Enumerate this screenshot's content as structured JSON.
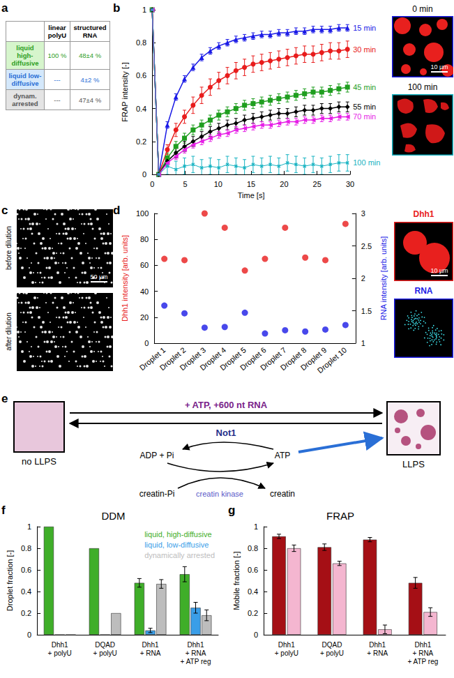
{
  "panel_labels": [
    "a",
    "b",
    "c",
    "d",
    "e",
    "f",
    "g"
  ],
  "table": {
    "header": [
      "",
      "linear polyU",
      "structured RNA"
    ],
    "rows": [
      {
        "label": "liquid high-diffusive",
        "cells": [
          "100 %",
          "48±4 %"
        ]
      },
      {
        "label": "liquid low-diffusive",
        "cells": [
          "---",
          "4±2 %"
        ]
      },
      {
        "label": "dynam. arrested",
        "cells": [
          "---",
          "47±4 %"
        ]
      }
    ]
  },
  "images": {
    "b": [
      {
        "label": "0 min",
        "scale_bar": "10 µm"
      },
      {
        "label": "100 min"
      }
    ],
    "c": [
      {
        "label": "before dilution",
        "scale_bar": "50 µm"
      },
      {
        "label": "after dilution"
      }
    ],
    "d": [
      {
        "label": "Dhh1",
        "scale_bar": "10 µm"
      },
      {
        "label": "RNA"
      }
    ]
  },
  "diagram": {
    "left_box": "no LLPS",
    "right_box": "LLPS",
    "forward": "+ ATP, +600 nt RNA",
    "backward": "Not1",
    "cycle": {
      "left": "ADP + Pi",
      "right": "ATP",
      "bottom_left": "creatin-Pi",
      "bottom_right": "creatin",
      "enzyme": "creatin kinase"
    }
  },
  "chart_data": [
    {
      "type": "line",
      "xlabel": "Time [s]",
      "ylabel": "FRAP intensity [-]",
      "xlim": [
        0,
        30
      ],
      "xticks": [
        0,
        5,
        10,
        15,
        20,
        25,
        30
      ],
      "ylim": [
        0,
        1
      ],
      "yticks": [
        0,
        0.2,
        0.4,
        0.6,
        0.8,
        1
      ],
      "x": [
        0,
        1,
        2.3,
        3.6,
        4.9,
        6.2,
        7.5,
        8.8,
        10.1,
        11.4,
        12.7,
        14,
        15.3,
        16.6,
        17.9,
        19.2,
        20.5,
        21.8,
        23.1,
        24.4,
        25.7,
        27,
        28.3,
        29.6
      ],
      "series": [
        {
          "name": "15 min",
          "color": "#1a1ae6",
          "marker": "triangle",
          "values": [
            1,
            0,
            0.3,
            0.47,
            0.58,
            0.65,
            0.71,
            0.75,
            0.78,
            0.8,
            0.82,
            0.83,
            0.84,
            0.85,
            0.85,
            0.86,
            0.86,
            0.87,
            0.87,
            0.88,
            0.88,
            0.88,
            0.89,
            0.89
          ],
          "errors": [
            0,
            0,
            0.02,
            0.02,
            0.02,
            0.02,
            0.02,
            0.02,
            0.02,
            0.02,
            0.02,
            0.02,
            0.02,
            0.02,
            0.02,
            0.02,
            0.02,
            0.02,
            0.02,
            0.02,
            0.02,
            0.02,
            0.02,
            0.02
          ]
        },
        {
          "name": "30 min",
          "color": "#e81c1c",
          "marker": "circle",
          "values": [
            1,
            0,
            0.15,
            0.27,
            0.35,
            0.42,
            0.48,
            0.53,
            0.57,
            0.6,
            0.63,
            0.65,
            0.67,
            0.68,
            0.69,
            0.7,
            0.71,
            0.72,
            0.73,
            0.73,
            0.74,
            0.75,
            0.75,
            0.76
          ],
          "errors": [
            0,
            0,
            0.03,
            0.04,
            0.04,
            0.05,
            0.05,
            0.05,
            0.05,
            0.05,
            0.05,
            0.05,
            0.05,
            0.05,
            0.05,
            0.05,
            0.05,
            0.05,
            0.05,
            0.05,
            0.05,
            0.05,
            0.05,
            0.05
          ]
        },
        {
          "name": "45 min",
          "color": "#1f9e1f",
          "marker": "square",
          "values": [
            1,
            0,
            0.1,
            0.17,
            0.22,
            0.27,
            0.3,
            0.33,
            0.36,
            0.38,
            0.4,
            0.42,
            0.43,
            0.44,
            0.45,
            0.46,
            0.47,
            0.48,
            0.49,
            0.5,
            0.5,
            0.51,
            0.52,
            0.53
          ],
          "errors": [
            0,
            0,
            0.03,
            0.03,
            0.03,
            0.03,
            0.03,
            0.03,
            0.03,
            0.03,
            0.03,
            0.03,
            0.03,
            0.03,
            0.03,
            0.03,
            0.03,
            0.03,
            0.03,
            0.03,
            0.03,
            0.03,
            0.03,
            0.03
          ]
        },
        {
          "name": "55 min",
          "color": "#000000",
          "marker": "diamond",
          "values": [
            1,
            0,
            0.08,
            0.13,
            0.17,
            0.2,
            0.23,
            0.26,
            0.28,
            0.3,
            0.31,
            0.33,
            0.34,
            0.35,
            0.36,
            0.37,
            0.37,
            0.38,
            0.39,
            0.39,
            0.4,
            0.4,
            0.41,
            0.41
          ],
          "errors": [
            0,
            0,
            0.03,
            0.03,
            0.03,
            0.03,
            0.03,
            0.03,
            0.03,
            0.03,
            0.03,
            0.03,
            0.03,
            0.03,
            0.03,
            0.03,
            0.03,
            0.03,
            0.03,
            0.03,
            0.03,
            0.03,
            0.03,
            0.03
          ]
        },
        {
          "name": "70 min",
          "color": "#e61ee6",
          "marker": "triangle-left",
          "values": [
            1,
            0,
            0.07,
            0.11,
            0.15,
            0.18,
            0.2,
            0.22,
            0.24,
            0.25,
            0.27,
            0.28,
            0.29,
            0.3,
            0.3,
            0.31,
            0.32,
            0.32,
            0.33,
            0.33,
            0.34,
            0.34,
            0.35,
            0.35
          ],
          "errors": [
            0,
            0,
            0.02,
            0.02,
            0.02,
            0.02,
            0.02,
            0.02,
            0.02,
            0.02,
            0.02,
            0.02,
            0.02,
            0.02,
            0.02,
            0.02,
            0.02,
            0.02,
            0.02,
            0.02,
            0.02,
            0.02,
            0.02,
            0.02
          ]
        },
        {
          "name": "100 min",
          "color": "#17b3c2",
          "marker": "x",
          "values": [
            1,
            0,
            0.05,
            0.03,
            0.05,
            0.06,
            0.04,
            0.05,
            0.04,
            0.06,
            0.05,
            0.04,
            0.06,
            0.05,
            0.06,
            0.05,
            0.07,
            0.06,
            0.05,
            0.06,
            0.05,
            0.06,
            0.07,
            0.07
          ],
          "errors": [
            0,
            0,
            0.05,
            0.05,
            0.05,
            0.05,
            0.05,
            0.05,
            0.05,
            0.05,
            0.05,
            0.05,
            0.05,
            0.05,
            0.05,
            0.05,
            0.05,
            0.05,
            0.05,
            0.05,
            0.05,
            0.05,
            0.05,
            0.05
          ]
        }
      ]
    },
    {
      "type": "scatter",
      "categories": [
        "Droplet 1",
        "Droplet 2",
        "Droplet 3",
        "Droplet 4",
        "Droplet 5",
        "Droplet 6",
        "Droplet 7",
        "Droplet 8",
        "Droplet 9",
        "Droplet 10"
      ],
      "ylabel": "Dhh1 intensity [arb. units]",
      "ylim": [
        0,
        100
      ],
      "yticks": [
        0,
        20,
        40,
        60,
        80,
        100
      ],
      "y2label": "RNA intensity [arb. units]",
      "y2lim": [
        1,
        3
      ],
      "y2ticks": [
        1,
        1.5,
        2,
        2.5,
        3
      ],
      "series": [
        {
          "color": "#e81c1c",
          "marker": "circle",
          "values": [
            65,
            64,
            100,
            89,
            56,
            65,
            89,
            66,
            64,
            92
          ]
        },
        {
          "color": "#1a1ae6",
          "marker": "circle",
          "axis": "y2",
          "values": [
            1.58,
            1.46,
            1.24,
            1.25,
            1.47,
            1.15,
            1.2,
            1.18,
            1.21,
            1.28
          ]
        }
      ]
    },
    {
      "type": "bar",
      "title": "DDM",
      "categories": [
        "Dhh1\n+ polyU",
        "DQAD\n+ polyU",
        "Dhh1\n+ RNA",
        "Dhh1\n+ RNA\n+ ATP reg"
      ],
      "ylabel": "Droplet fraction [-]",
      "ylim": [
        0,
        1
      ],
      "yticks": [
        0,
        0.2,
        0.4,
        0.6,
        0.8,
        1
      ],
      "legend": "top-right",
      "series": [
        {
          "name": "liquid, high-diffusive",
          "color": "#3fae29",
          "values": [
            1,
            0.8,
            0.48,
            0.56
          ],
          "errors": [
            0,
            0,
            0.04,
            0.07
          ]
        },
        {
          "name": "liquid, low-diffusive",
          "color": "#3a9ee8",
          "values": [
            0,
            0,
            0.04,
            0.25
          ],
          "errors": [
            0,
            0,
            0.02,
            0.05
          ]
        },
        {
          "name": "dynamically arrested",
          "color": "#bdbdbd",
          "values": [
            0,
            0.2,
            0.47,
            0.18
          ],
          "errors": [
            0,
            0,
            0.04,
            0.05
          ]
        }
      ]
    },
    {
      "type": "bar",
      "title": "FRAP",
      "categories": [
        "Dhh1\n+ polyU",
        "DQAD\n+ polyU",
        "Dhh1\n+ RNA",
        "Dhh1\n+ RNA\n+ ATP reg"
      ],
      "ylabel": "Mobile fraction [-]",
      "ylim": [
        0,
        1
      ],
      "yticks": [
        0,
        0.2,
        0.4,
        0.6,
        0.8,
        1
      ],
      "series": [
        {
          "color": "#a50f15",
          "values": [
            0.91,
            0.81,
            0.88,
            0.48
          ],
          "errors": [
            0.02,
            0.03,
            0.02,
            0.05
          ]
        },
        {
          "color": "#f4b6d0",
          "values": [
            0.8,
            0.66,
            0.05,
            0.21
          ],
          "errors": [
            0.03,
            0.02,
            0.04,
            0.04
          ]
        }
      ]
    }
  ]
}
